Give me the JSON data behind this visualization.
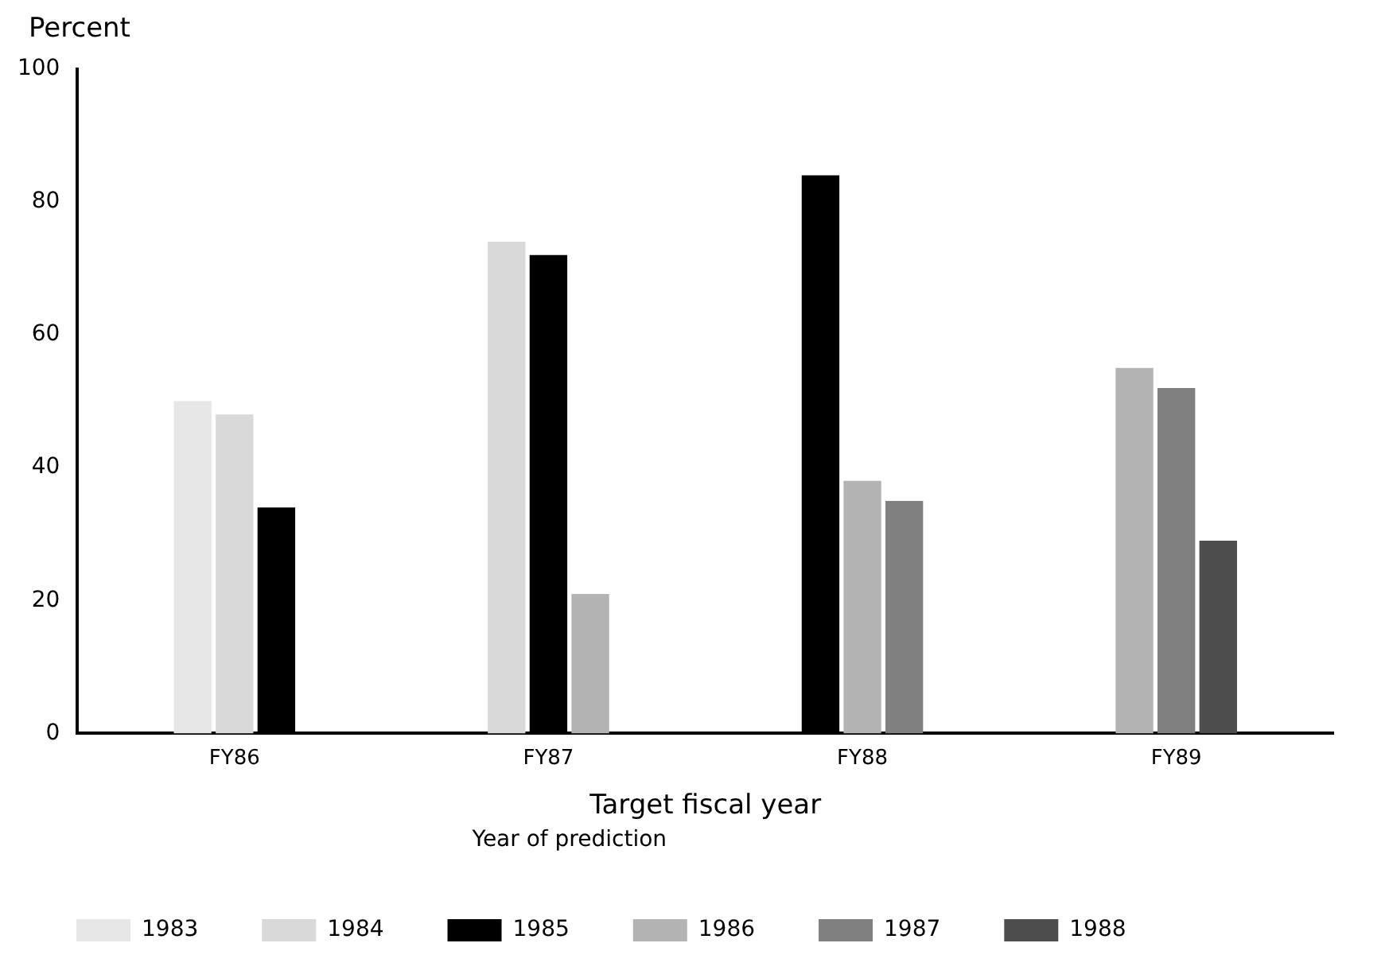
{
  "chart_data": {
    "type": "bar",
    "ylabel": "Percent",
    "xlabel": "Target fiscal year",
    "legend_title": "Year of prediction",
    "categories": [
      "FY86",
      "FY87",
      "FY88",
      "FY89"
    ],
    "series": [
      {
        "name": "1983",
        "color": "#e6e6e6",
        "values": [
          50,
          null,
          null,
          null
        ]
      },
      {
        "name": "1984",
        "color": "#d9d9d9",
        "values": [
          48,
          74,
          null,
          null
        ]
      },
      {
        "name": "1985",
        "color": "#000000",
        "values": [
          34,
          72,
          84,
          null
        ]
      },
      {
        "name": "1986",
        "color": "#b3b3b3",
        "values": [
          null,
          21,
          38,
          55
        ]
      },
      {
        "name": "1987",
        "color": "#808080",
        "values": [
          null,
          null,
          35,
          52
        ]
      },
      {
        "name": "1988",
        "color": "#4d4d4d",
        "values": [
          null,
          null,
          null,
          29
        ]
      }
    ],
    "ylim": [
      0,
      100
    ],
    "yticks": [
      0,
      20,
      40,
      60,
      80,
      100
    ],
    "grid": false,
    "legend": "bottom"
  }
}
